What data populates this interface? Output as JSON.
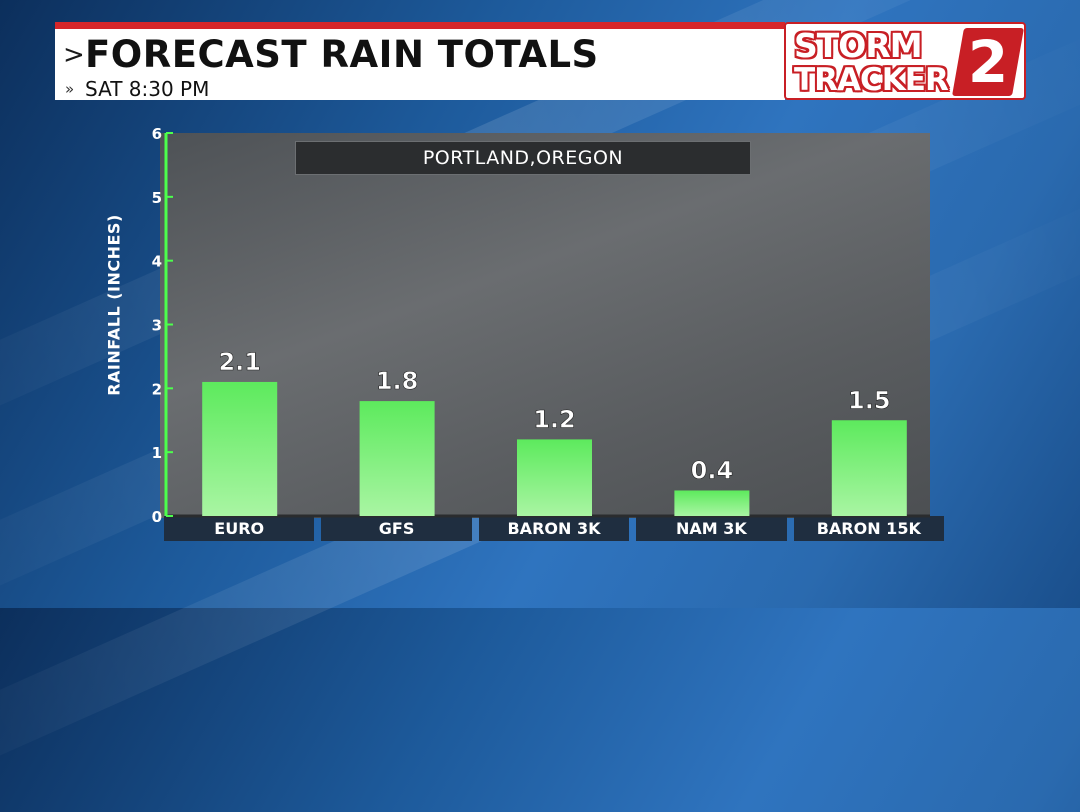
{
  "header": {
    "title": "FORECAST RAIN TOTALS",
    "subtitle": "SAT 8:30 PM",
    "chevron": ">",
    "double_chevron": "»"
  },
  "logo": {
    "line1": "STORM",
    "line2": "TRACKER",
    "number": "2"
  },
  "colors": {
    "bar": "#5dea5d",
    "axis": "#4cff4c",
    "brand_red": "#d6262a"
  },
  "chart_data": {
    "type": "bar",
    "title": "PORTLAND,OREGON",
    "xlabel": "",
    "ylabel": "RAINFALL (INCHES)",
    "categories": [
      "EURO",
      "GFS",
      "BARON 3K",
      "NAM 3K",
      "BARON 15K"
    ],
    "values": [
      2.1,
      1.8,
      1.2,
      0.4,
      1.5
    ],
    "data_labels": [
      "2.1",
      "1.8",
      "1.2",
      "0.4",
      "1.5"
    ],
    "ylim": [
      0,
      6
    ],
    "yticks": [
      0,
      1,
      2,
      3,
      4,
      5,
      6
    ],
    "grid": false,
    "legend": "none"
  }
}
